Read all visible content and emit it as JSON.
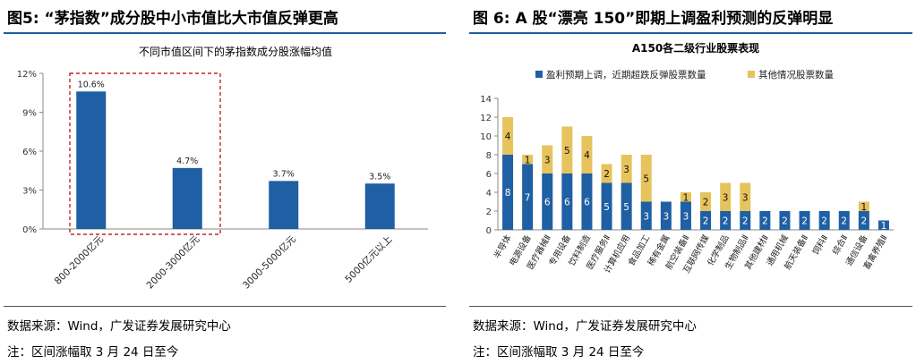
{
  "left": {
    "figure_title": "图5: “茅指数”成分股中小市值比大市值反弹更高",
    "source": "数据来源：Wind，广发证券发展研究中心",
    "note": "注：区间涨幅取 3 月 24 日至今"
  },
  "right": {
    "figure_title": "图 6: A 股“漂亮 150”即期上调盈利预测的反弹明显",
    "source": "数据来源：Wind，广发证券发展研究中心",
    "note": "注：区间涨幅取 3 月 24 日至今"
  },
  "colors": {
    "blue": "#1f5fa3",
    "gold": "#e6c35c",
    "highlight": "#c0262b",
    "rule": "#1f5fa3"
  },
  "chart_data": [
    {
      "type": "bar",
      "title": "不同市值区间下的茅指数成分股涨幅均值",
      "categories": [
        "800-2000亿元",
        "2000-3000亿元",
        "3000-5000亿元",
        "5000亿元以上"
      ],
      "values": [
        10.6,
        4.7,
        3.7,
        3.5
      ],
      "value_labels": [
        "10.6%",
        "4.7%",
        "3.7%",
        "3.5%"
      ],
      "yticks": [
        "0%",
        "3%",
        "6%",
        "9%",
        "12%"
      ],
      "ylim": [
        0,
        12
      ],
      "highlighted_categories": [
        "800-2000亿元",
        "2000-3000亿元"
      ]
    },
    {
      "type": "bar",
      "stacked": true,
      "title": "A150各二级行业股票表现",
      "legend_position": "top",
      "categories": [
        "半导体",
        "电源设备",
        "医疗器械Ⅱ",
        "专用设备",
        "饮料制造",
        "医疗服务Ⅱ",
        "计算机应用",
        "食品加工",
        "稀有金属",
        "航空装备Ⅱ",
        "互联网传媒",
        "化学制品",
        "生物制品Ⅱ",
        "其他建材Ⅱ",
        "通用机械",
        "航天装备Ⅱ",
        "饲料Ⅱ",
        "综合Ⅱ",
        "通信设备",
        "畜禽养殖Ⅱ"
      ],
      "series": [
        {
          "name": "盈利预期上调，近期超跌反弹股票数量",
          "values": [
            8,
            7,
            6,
            6,
            6,
            5,
            5,
            3,
            3,
            3,
            2,
            2,
            2,
            2,
            2,
            2,
            2,
            2,
            2,
            1
          ]
        },
        {
          "name": "其他情况股票数量",
          "values": [
            4,
            1,
            3,
            5,
            4,
            2,
            3,
            5,
            0,
            1,
            2,
            3,
            3,
            0,
            0,
            0,
            0,
            0,
            1,
            0
          ]
        }
      ],
      "yticks": [
        "0",
        "2",
        "4",
        "6",
        "8",
        "10",
        "12",
        "14"
      ],
      "ylim": [
        0,
        14
      ]
    }
  ]
}
